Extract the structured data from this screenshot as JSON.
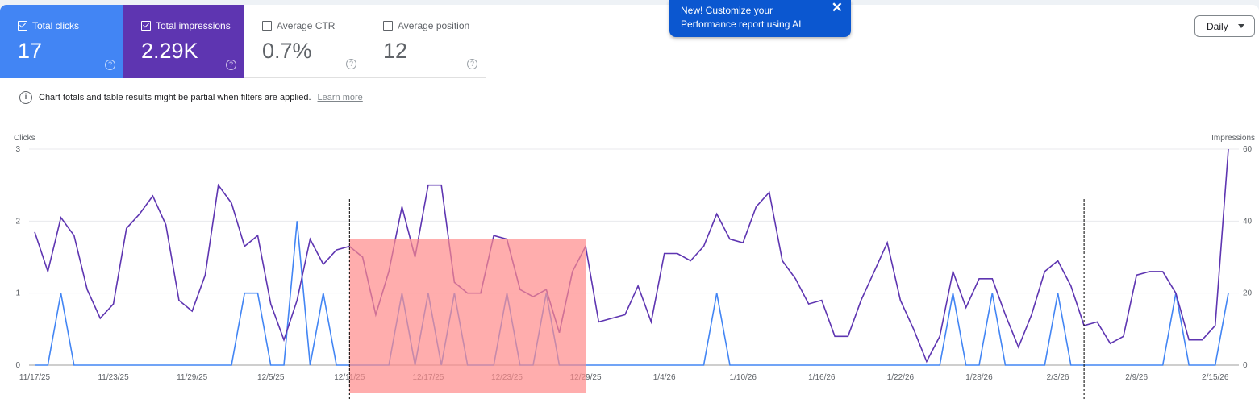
{
  "cards": [
    {
      "label": "Total clicks",
      "value": "17",
      "checked": true,
      "color": "#4285f4"
    },
    {
      "label": "Total impressions",
      "value": "2.29K",
      "checked": true,
      "color": "#5e35b1"
    },
    {
      "label": "Average CTR",
      "value": "0.7%",
      "checked": false
    },
    {
      "label": "Average position",
      "value": "12",
      "checked": false
    }
  ],
  "help_glyph": "?",
  "notice": {
    "text": "Chart totals and table results might be partial when filters are applied.",
    "link": "Learn more",
    "icon": "info-icon",
    "icon_glyph": "i"
  },
  "toast": {
    "line1": "New! Customize your",
    "line2": "Performance report using AI",
    "close": "✕"
  },
  "granularity": {
    "selected": "Daily"
  },
  "chart_data": {
    "type": "line",
    "left_axis_label": "Clicks",
    "right_axis_label": "Impressions",
    "left_ylim": [
      0,
      3
    ],
    "right_ylim": [
      0,
      60
    ],
    "left_ticks": [
      "0",
      "1",
      "2",
      "3"
    ],
    "right_ticks": [
      "0",
      "20",
      "40",
      "60"
    ],
    "x_start": "11/17/25",
    "x_end": "2/15/26",
    "x_tick_labels": [
      "11/17/25",
      "11/23/25",
      "11/29/25",
      "12/5/25",
      "12/11/25",
      "12/17/25",
      "12/23/25",
      "12/29/25",
      "1/4/26",
      "1/10/26",
      "1/16/26",
      "1/22/26",
      "1/28/26",
      "2/3/26",
      "2/9/26",
      "2/15/26"
    ],
    "x_tick_every": 6,
    "grid": true,
    "series": [
      {
        "name": "Clicks",
        "axis": "left",
        "color": "#4285f4",
        "values": [
          0,
          0,
          1,
          0,
          0,
          0,
          0,
          0,
          0,
          0,
          0,
          0,
          0,
          0,
          0,
          0,
          1,
          1,
          0,
          0,
          2,
          0,
          1,
          0,
          0,
          0,
          0,
          0,
          1,
          0,
          1,
          0,
          1,
          0,
          0,
          0,
          1,
          0,
          0,
          1,
          0,
          0,
          0,
          0,
          0,
          0,
          0,
          0,
          0,
          0,
          0,
          0,
          1,
          0,
          0,
          0,
          0,
          0,
          0,
          0,
          0,
          0,
          0,
          0,
          0,
          0,
          0,
          0,
          0,
          0,
          1,
          0,
          0,
          1,
          0,
          0,
          0,
          0,
          1,
          0,
          0,
          0,
          0,
          0,
          0,
          0,
          0,
          1,
          0,
          0,
          0,
          1
        ]
      },
      {
        "name": "Impressions",
        "axis": "right",
        "color": "#5e35b1",
        "values": [
          37,
          26,
          41,
          36,
          21,
          13,
          17,
          38,
          42,
          47,
          39,
          18,
          15,
          25,
          50,
          45,
          33,
          36,
          17,
          7,
          18,
          35,
          28,
          32,
          33,
          30,
          14,
          26,
          44,
          30,
          50,
          50,
          23,
          20,
          20,
          36,
          35,
          21,
          19,
          21,
          9,
          26,
          33,
          12,
          13,
          14,
          22,
          12,
          31,
          31,
          29,
          33,
          42,
          35,
          34,
          44,
          48,
          29,
          24,
          17,
          18,
          8,
          8,
          18,
          26,
          34,
          18,
          10,
          1,
          8,
          26,
          16,
          24,
          24,
          14,
          5,
          14,
          26,
          29,
          22,
          11,
          12,
          6,
          8,
          25,
          26,
          26,
          20,
          7,
          7,
          11,
          60
        ]
      }
    ],
    "annotations": {
      "dashed_markers": [
        "12/11/25",
        "2/5/26"
      ],
      "highlight_range": [
        "12/11/25",
        "12/29/25"
      ],
      "highlight_color": "#ff8a8a"
    }
  }
}
